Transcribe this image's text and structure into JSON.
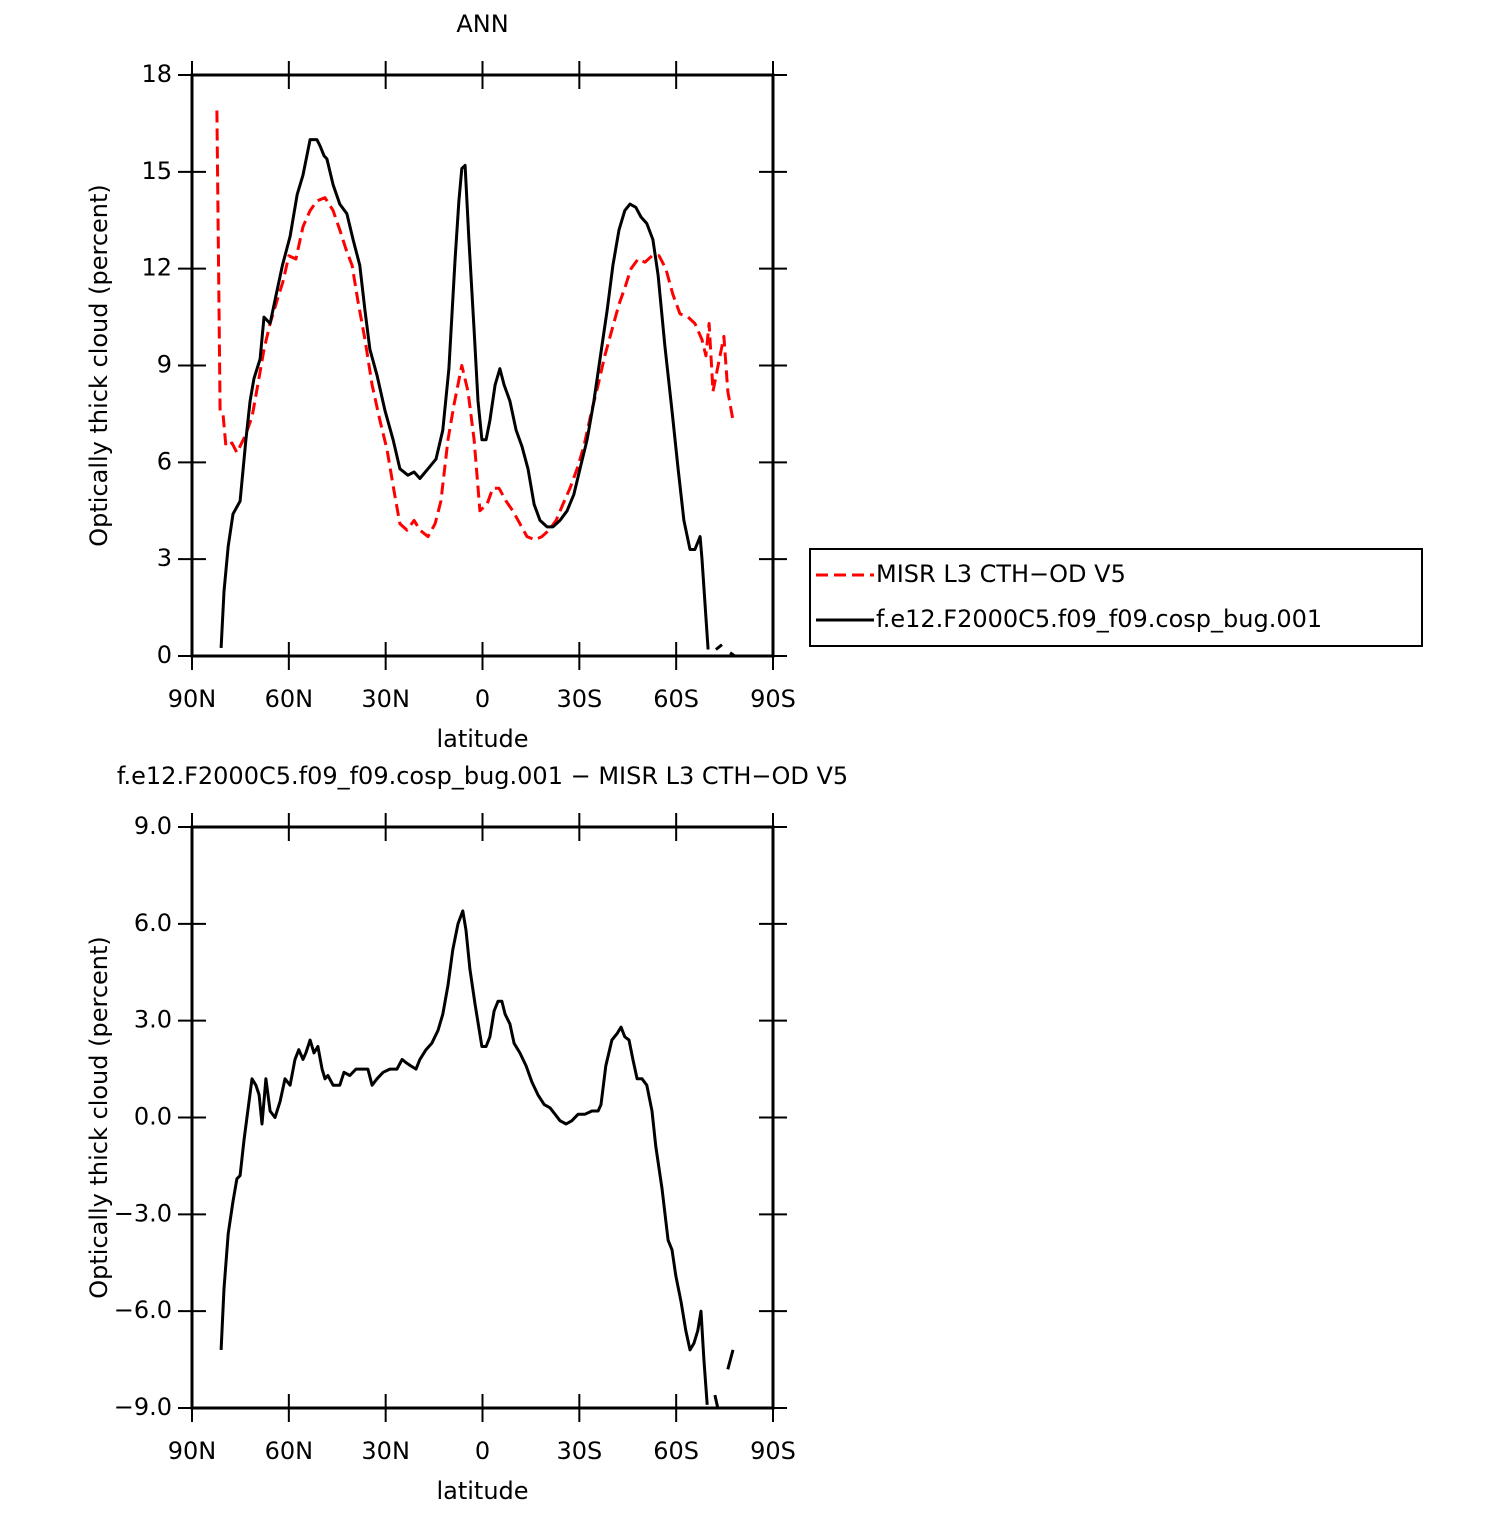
{
  "chart_data": [
    {
      "type": "line",
      "title": "ANN",
      "xlabel": "latitude",
      "ylabel": "Optically thick cloud (percent)",
      "xlim": [
        90,
        -90
      ],
      "xticks": [
        {
          "value": 90,
          "label": "90N"
        },
        {
          "value": 60,
          "label": "60N"
        },
        {
          "value": 30,
          "label": "30N"
        },
        0,
        {
          "value": -30,
          "label": "30S"
        },
        {
          "value": -60,
          "label": "60S"
        },
        {
          "value": -90,
          "label": "90S"
        }
      ],
      "ylim": [
        0,
        18
      ],
      "yticks": [
        0,
        3,
        6,
        9,
        12,
        15,
        18
      ],
      "legend": "outside right",
      "series": [
        {
          "name": "MISR L3 CTH−OD V5",
          "color": "#ff0000",
          "linestyle": "dashed",
          "x": [
            82.3,
            81.3,
            80.4,
            79.5,
            77.6,
            76.1,
            73.6,
            71.4,
            69.6,
            67.7,
            65.8,
            63.7,
            61.8,
            60,
            57.8,
            55.6,
            53.4,
            51.3,
            48.8,
            46.3,
            44.2,
            42.3,
            40.4,
            38.6,
            36.4,
            34.2,
            31.8,
            29.6,
            27.4,
            25.6,
            23.4,
            21.2,
            19.4,
            16.9,
            14.7,
            12.9,
            10.7,
            8.8,
            6.4,
            4.5,
            2.6,
            0.8,
            -1.4,
            -3.2,
            -5.1,
            -7.3,
            -9.4,
            -11.6,
            -13.8,
            -16.3,
            -18.4,
            -20.6,
            -22.8,
            -24.9,
            -27.1,
            -29.3,
            -31.4,
            -33.6,
            -35.8,
            -37.9,
            -40.1,
            -42.3,
            -44.1,
            -46.0,
            -48.2,
            -50.3,
            -52.5,
            -54.7,
            -56.8,
            -59.0,
            -61.2,
            -63.7,
            -65.8,
            -68.0,
            -69.2,
            -70.2,
            -71.4,
            -73.0,
            -74.8,
            -76.0,
            -77.6
          ],
          "values": [
            16.9,
            7.6,
            7.5,
            6.5,
            6.6,
            6.3,
            6.8,
            7.4,
            8.4,
            9.5,
            10.3,
            11.0,
            11.6,
            12.4,
            12.3,
            13.3,
            13.8,
            14.1,
            14.2,
            13.8,
            13.2,
            12.6,
            12.1,
            11.0,
            9.8,
            8.4,
            7.3,
            6.4,
            5.1,
            4.1,
            3.9,
            4.2,
            3.9,
            3.7,
            4.1,
            4.8,
            6.7,
            7.8,
            9.0,
            8.2,
            6.7,
            4.5,
            4.7,
            5.2,
            5.2,
            4.8,
            4.5,
            4.1,
            3.7,
            3.6,
            3.7,
            3.9,
            4.2,
            4.7,
            5.2,
            5.8,
            6.5,
            7.5,
            8.4,
            9.3,
            10.1,
            10.9,
            11.4,
            12.0,
            12.3,
            12.2,
            12.4,
            12.4,
            12.0,
            11.2,
            10.6,
            10.5,
            10.3,
            9.8,
            9.3,
            10.3,
            8.2,
            9.0,
            9.9,
            8.2,
            7.3
          ]
        },
        {
          "name": "f.e12.F2000C5.f09_f09.cosp_bug.001",
          "color": "#000000",
          "linestyle": "solid",
          "x": [
            81.0,
            80.1,
            78.8,
            77.3,
            75.1,
            73.3,
            72.0,
            70.8,
            68.9,
            67.7,
            65.8,
            63.9,
            62.0,
            59.6,
            57.4,
            55.6,
            53.4,
            51.3,
            50.3,
            49.1,
            48.2,
            46.3,
            44.2,
            42.0,
            40.1,
            38.0,
            36.4,
            34.9,
            32.7,
            30.2,
            27.7,
            25.6,
            23.1,
            21.2,
            19.4,
            16.9,
            14.4,
            12.3,
            10.4,
            8.5,
            7.3,
            6.4,
            5.4,
            4.2,
            2.6,
            1.4,
            0.2,
            -1.1,
            -2.3,
            -3.9,
            -5.4,
            -6.7,
            -8.5,
            -10.4,
            -12.2,
            -14.1,
            -16.0,
            -17.8,
            -20.0,
            -21.8,
            -24.0,
            -26.2,
            -28.3,
            -30.2,
            -32.4,
            -34.5,
            -36.4,
            -38.6,
            -40.4,
            -42.3,
            -44.1,
            -45.7,
            -47.5,
            -49.1,
            -50.9,
            -52.8,
            -54.4,
            -56.5,
            -58.7,
            -60.6,
            -62.4,
            -64.3,
            -65.8,
            -67.4,
            -68.0,
            -69.9,
            -71.0,
            -72.3,
            -74.2,
            -75.5,
            -76.7,
            -78.2
          ],
          "values": [
            0.25,
            2.0,
            3.4,
            4.4,
            4.8,
            6.7,
            7.9,
            8.6,
            9.2,
            10.5,
            10.3,
            11.2,
            12.1,
            13.0,
            14.3,
            14.9,
            16.0,
            16.0,
            15.8,
            15.5,
            15.4,
            14.6,
            14.0,
            13.7,
            12.9,
            12.1,
            10.7,
            9.5,
            8.7,
            7.6,
            6.7,
            5.8,
            5.6,
            5.7,
            5.5,
            5.8,
            6.1,
            7.0,
            8.9,
            12.3,
            14.1,
            15.1,
            15.2,
            12.9,
            10.1,
            7.9,
            6.7,
            6.7,
            7.3,
            8.4,
            8.9,
            8.4,
            7.9,
            7.0,
            6.5,
            5.8,
            4.7,
            4.2,
            4.0,
            4.0,
            4.2,
            4.5,
            5.0,
            5.8,
            6.7,
            7.9,
            9.2,
            10.7,
            12.1,
            13.2,
            13.8,
            14.0,
            13.9,
            13.6,
            13.4,
            12.9,
            11.8,
            9.6,
            7.6,
            5.8,
            4.2,
            3.3,
            3.3,
            3.7,
            3.0,
            0.2,
            null,
            0.2,
            0.35,
            null,
            0.1,
            0.0
          ]
        }
      ]
    },
    {
      "type": "line",
      "title": "f.e12.F2000C5.f09_f09.cosp_bug.001 − MISR L3 CTH−OD V5",
      "xlabel": "latitude",
      "ylabel": "Optically thick cloud (percent)",
      "xlim": [
        90,
        -90
      ],
      "xticks": [
        {
          "value": 90,
          "label": "90N"
        },
        {
          "value": 60,
          "label": "60N"
        },
        {
          "value": 30,
          "label": "30N"
        },
        0,
        {
          "value": -30,
          "label": "30S"
        },
        {
          "value": -60,
          "label": "60S"
        },
        {
          "value": -90,
          "label": "90S"
        }
      ],
      "ylim": [
        -9,
        9
      ],
      "yticks": [
        {
          "value": -9,
          "label": "−9.0"
        },
        {
          "value": -6,
          "label": "−6.0"
        },
        {
          "value": -3,
          "label": "−3.0"
        },
        {
          "value": 0,
          "label": "0.0"
        },
        {
          "value": 3,
          "label": "3.0"
        },
        {
          "value": 6,
          "label": "6.0"
        },
        {
          "value": 9,
          "label": "9.0"
        }
      ],
      "series": [
        {
          "color": "#000000",
          "linestyle": "solid",
          "x": [
            81.0,
            80.1,
            78.8,
            77.3,
            76.1,
            75.1,
            73.9,
            72.7,
            71.4,
            70.2,
            69.2,
            68.3,
            67.1,
            65.8,
            64.3,
            62.7,
            61.2,
            59.6,
            58.1,
            56.9,
            55.6,
            54.7,
            53.4,
            52.2,
            51.0,
            49.7,
            48.8,
            47.9,
            46.3,
            44.2,
            42.9,
            41.1,
            39.2,
            37.3,
            35.5,
            34.2,
            32.7,
            30.8,
            28.7,
            26.5,
            24.9,
            23.7,
            22.2,
            20.6,
            19.4,
            17.5,
            15.7,
            13.8,
            12.3,
            10.7,
            9.2,
            7.6,
            6.1,
            5.1,
            3.9,
            2.3,
            0.2,
            -1.1,
            -2.3,
            -3.6,
            -4.8,
            -6.0,
            -7.0,
            -8.5,
            -9.8,
            -11.6,
            -13.5,
            -15.3,
            -17.2,
            -19.1,
            -20.9,
            -22.5,
            -24.0,
            -25.9,
            -27.7,
            -29.6,
            -31.7,
            -33.9,
            -35.8,
            -36.7,
            -38.2,
            -40.1,
            -41.7,
            -42.9,
            -44.1,
            -45.4,
            -46.6,
            -47.9,
            -49.4,
            -50.9,
            -52.5,
            -53.7,
            -55.6,
            -57.5,
            -58.7,
            -59.9,
            -61.5,
            -63.0,
            -64.3,
            -65.5,
            -66.7,
            -67.7,
            -68.6,
            -69.6,
            -71.0,
            -72.0,
            -72.9,
            -74.5,
            -76.0,
            -77.6
          ],
          "values": [
            -7.2,
            -5.3,
            -3.6,
            -2.6,
            -1.9,
            -1.8,
            -0.7,
            0.2,
            1.2,
            1.0,
            0.7,
            -0.2,
            1.2,
            0.2,
            0.0,
            0.5,
            1.2,
            1.0,
            1.8,
            2.1,
            1.8,
            2.0,
            2.4,
            2.0,
            2.2,
            1.5,
            1.2,
            1.3,
            1.0,
            1.0,
            1.4,
            1.3,
            1.5,
            1.5,
            1.5,
            1.0,
            1.2,
            1.4,
            1.5,
            1.5,
            1.8,
            1.7,
            1.6,
            1.5,
            1.8,
            2.1,
            2.3,
            2.7,
            3.2,
            4.1,
            5.2,
            6.0,
            6.4,
            5.8,
            4.6,
            3.5,
            2.2,
            2.2,
            2.5,
            3.3,
            3.6,
            3.6,
            3.2,
            2.9,
            2.3,
            2.0,
            1.6,
            1.1,
            0.7,
            0.4,
            0.3,
            0.1,
            -0.1,
            -0.2,
            -0.1,
            0.1,
            0.1,
            0.2,
            0.2,
            0.4,
            1.6,
            2.4,
            2.6,
            2.8,
            2.5,
            2.4,
            1.8,
            1.2,
            1.2,
            1.0,
            0.2,
            -0.9,
            -2.2,
            -3.8,
            -4.1,
            -4.9,
            -5.7,
            -6.6,
            -7.2,
            -7.0,
            -6.6,
            -6.0,
            -7.5,
            -8.9,
            null,
            -8.6,
            -9.0,
            null,
            -7.8,
            -7.2
          ]
        }
      ]
    }
  ]
}
